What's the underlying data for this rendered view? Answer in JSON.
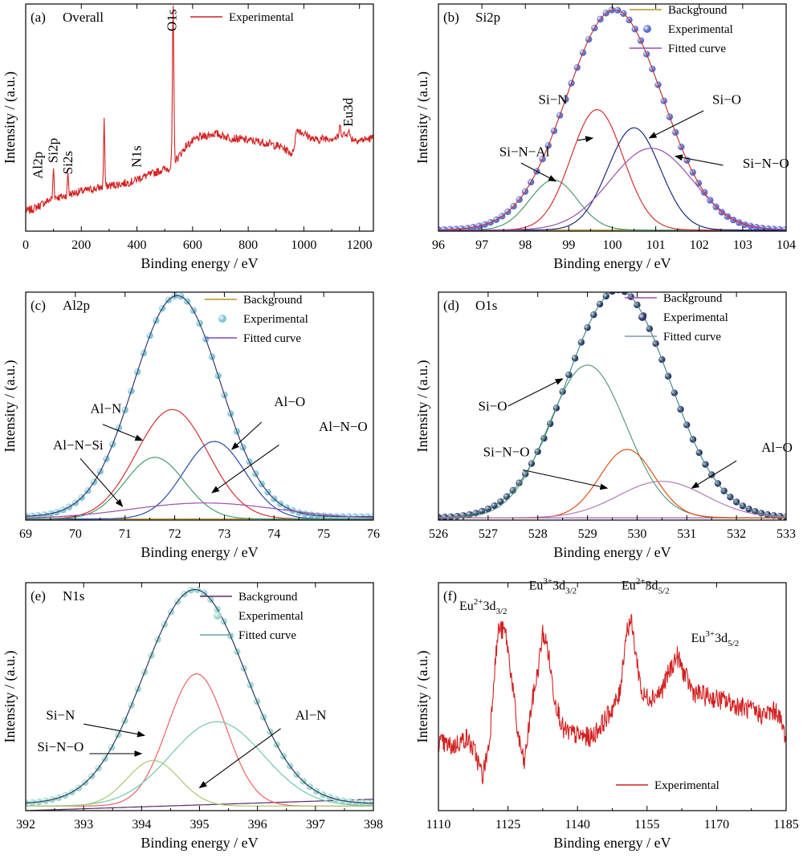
{
  "chart_data": [
    {
      "id": "a",
      "type": "line",
      "panel_label": "(a)",
      "title": "Overall",
      "xlabel": "Binding energy / eV",
      "ylabel": "Intensity / (a.u.)",
      "xlim": [
        0,
        1250
      ],
      "xticks": [
        0,
        200,
        400,
        600,
        800,
        1000,
        1200
      ],
      "legend": [
        {
          "name": "Experimental",
          "kind": "line",
          "color": "#d42020"
        }
      ],
      "series": [
        {
          "name": "Experimental",
          "color": "#d42020",
          "noise": 0.018,
          "points": [
            [
              10,
              0.09
            ],
            [
              30,
              0.1
            ],
            [
              60,
              0.12
            ],
            [
              74,
              0.13
            ],
            [
              90,
              0.14
            ],
            [
              100,
              0.15
            ],
            [
              130,
              0.15
            ],
            [
              150,
              0.16
            ],
            [
              180,
              0.17
            ],
            [
              220,
              0.18
            ],
            [
              260,
              0.19
            ],
            [
              300,
              0.2
            ],
            [
              350,
              0.21
            ],
            [
              390,
              0.22
            ],
            [
              400,
              0.23
            ],
            [
              450,
              0.25
            ],
            [
              490,
              0.27
            ],
            [
              520,
              0.28
            ],
            [
              526,
              0.3
            ],
            [
              545,
              0.32
            ],
            [
              580,
              0.38
            ],
            [
              620,
              0.41
            ],
            [
              680,
              0.43
            ],
            [
              740,
              0.41
            ],
            [
              800,
              0.4
            ],
            [
              860,
              0.39
            ],
            [
              920,
              0.37
            ],
            [
              960,
              0.34
            ],
            [
              975,
              0.45
            ],
            [
              1000,
              0.43
            ],
            [
              1040,
              0.4
            ],
            [
              1080,
              0.41
            ],
            [
              1120,
              0.41
            ],
            [
              1140,
              0.43
            ],
            [
              1165,
              0.41
            ],
            [
              1200,
              0.4
            ],
            [
              1250,
              0.41
            ]
          ],
          "peaks": [
            {
              "x": 100,
              "h": 0.13,
              "w": 2
            },
            {
              "x": 152,
              "h": 0.1,
              "w": 2
            },
            {
              "x": 282,
              "h": 0.3,
              "w": 2
            },
            {
              "x": 530,
              "h": 0.68,
              "w": 2.5
            },
            {
              "x": 1130,
              "h": 0.04,
              "w": 3
            },
            {
              "x": 1160,
              "h": 0.04,
              "w": 3
            }
          ]
        }
      ],
      "annotations": [
        {
          "text": "Al2p",
          "x": 45,
          "y": 0.23,
          "rotate": true
        },
        {
          "text": "Si2p",
          "x": 100,
          "y": 0.3,
          "rotate": true
        },
        {
          "text": "Si2s",
          "x": 153,
          "y": 0.25,
          "rotate": true
        },
        {
          "text": "N1s",
          "x": 400,
          "y": 0.28,
          "rotate": true
        },
        {
          "text": "O1s",
          "x": 527,
          "y": 0.88,
          "rotate": true
        },
        {
          "text": "Eu3d",
          "x": 1160,
          "y": 0.46,
          "rotate": true
        }
      ]
    },
    {
      "id": "b",
      "type": "line",
      "panel_label": "(b)",
      "title": "Si2p",
      "xlabel": "Binding energy / eV",
      "ylabel": "Intensity / (a.u.)",
      "xlim": [
        96,
        104
      ],
      "xticks": [
        96,
        97,
        98,
        99,
        100,
        101,
        102,
        103,
        104
      ],
      "legend": [
        {
          "name": "Background",
          "kind": "line",
          "color": "#b8901c"
        },
        {
          "name": "Experimental",
          "kind": "dot",
          "color": "#5a6fd0"
        },
        {
          "name": "Fitted curve",
          "kind": "line",
          "color": "#9c4db0"
        }
      ],
      "series": [
        {
          "name": "Background",
          "color": "#b8901c",
          "fn": "linear",
          "params": [
            0.005,
            0.005
          ]
        },
        {
          "name": "Experimental",
          "kind": "dots",
          "color": "#5a6fd0",
          "fn": "gauss",
          "params": [
            100.05,
            1.1,
            0.97
          ],
          "baseline": 0.005,
          "step": 0.133
        },
        {
          "name": "Fitted curve",
          "color": "#c03a3a",
          "fn": "gauss",
          "params": [
            100.05,
            1.1,
            0.97
          ],
          "baseline": 0.005
        },
        {
          "name": "Si-N-Al",
          "color": "#4a9a6a",
          "fn": "gauss",
          "params": [
            98.65,
            0.55,
            0.22
          ],
          "baseline": 0.005
        },
        {
          "name": "Si-N",
          "color": "#d53030",
          "fn": "gauss",
          "params": [
            99.65,
            0.6,
            0.53
          ],
          "baseline": 0.005
        },
        {
          "name": "Si-O",
          "color": "#1a2a80",
          "fn": "gauss",
          "params": [
            100.5,
            0.6,
            0.45
          ],
          "baseline": 0.005
        },
        {
          "name": "Si-N-O",
          "color": "#9c4db0",
          "fn": "gauss",
          "params": [
            100.9,
            0.95,
            0.36
          ],
          "baseline": 0.005
        }
      ],
      "annotations": [
        {
          "text": "Si−N",
          "x": 98.3,
          "y": 0.56,
          "ax": 99.2,
          "ay": 0.4,
          "tx": 99.55,
          "ty": 0.41
        },
        {
          "text": "Si−N−Al",
          "x": 97.4,
          "y": 0.33,
          "ax": 97.9,
          "ay": 0.3,
          "tx": 98.7,
          "ty": 0.22
        },
        {
          "text": "Si−O",
          "x": 102.3,
          "y": 0.56,
          "ax": 102.1,
          "ay": 0.53,
          "tx": 100.85,
          "ty": 0.41
        },
        {
          "text": "Si−N−O",
          "x": 103.0,
          "y": 0.28,
          "ax": 102.55,
          "ay": 0.29,
          "tx": 101.45,
          "ty": 0.33
        }
      ]
    },
    {
      "id": "c",
      "type": "line",
      "panel_label": "(c)",
      "title": "Al2p",
      "xlabel": "Binding energy / eV",
      "ylabel": "Intensity / (a.u.)",
      "xlim": [
        69,
        76
      ],
      "xticks": [
        69,
        70,
        71,
        72,
        73,
        74,
        75,
        76
      ],
      "legend": [
        {
          "name": "Background",
          "kind": "line",
          "color": "#b8901c"
        },
        {
          "name": "Experimental",
          "kind": "dot",
          "color": "#7fc6d8"
        },
        {
          "name": "Fitted curve",
          "kind": "line",
          "color": "#7a4cb0"
        }
      ],
      "series": [
        {
          "name": "Background",
          "color": "#b8901c",
          "fn": "linear",
          "params": [
            0.005,
            0.005
          ]
        },
        {
          "name": "Experimental",
          "kind": "dots",
          "color": "#7fc6d8",
          "fn": "gauss",
          "params": [
            72.05,
            0.87,
            0.97
          ],
          "baseline": 0.015,
          "step": 0.125
        },
        {
          "name": "Fitted curve",
          "color": "#3a3a6a",
          "fn": "gauss",
          "params": [
            72.05,
            0.87,
            0.97
          ],
          "baseline": 0.015
        },
        {
          "name": "Al-N",
          "color": "#d53030",
          "fn": "gauss",
          "params": [
            71.95,
            0.72,
            0.48
          ],
          "baseline": 0.005
        },
        {
          "name": "Al-O",
          "color": "#2a4aa8",
          "fn": "gauss",
          "params": [
            72.8,
            0.62,
            0.34
          ],
          "baseline": 0.005
        },
        {
          "name": "Al-N-Si",
          "color": "#4a9a6a",
          "fn": "gauss",
          "params": [
            71.6,
            0.6,
            0.27
          ],
          "baseline": 0.005
        },
        {
          "name": "Al-N-O",
          "color": "#9c4db0",
          "fn": "gauss",
          "params": [
            72.6,
            1.5,
            0.07
          ],
          "baseline": 0.005
        }
      ],
      "annotations": [
        {
          "text": "Al−N",
          "x": 70.3,
          "y": 0.47,
          "ax": 70.55,
          "ay": 0.42,
          "tx": 71.35,
          "ty": 0.35
        },
        {
          "text": "Al−N−Si",
          "x": 69.55,
          "y": 0.31,
          "ax": 70.1,
          "ay": 0.27,
          "tx": 70.95,
          "ty": 0.06
        },
        {
          "text": "Al−O",
          "x": 74.0,
          "y": 0.5,
          "ax": 73.75,
          "ay": 0.43,
          "tx": 73.15,
          "ty": 0.31
        },
        {
          "text": "Al−N−O",
          "x": 74.9,
          "y": 0.39,
          "ax": 74.1,
          "ay": 0.33,
          "tx": 72.75,
          "ty": 0.12
        }
      ]
    },
    {
      "id": "d",
      "type": "line",
      "panel_label": "(d)",
      "title": "O1s",
      "xlabel": "Binding energy / eV",
      "ylabel": "Intensity / (a.u.)",
      "xlim": [
        526,
        533
      ],
      "xticks": [
        526,
        527,
        528,
        529,
        530,
        531,
        532,
        533
      ],
      "legend": [
        {
          "name": "Background",
          "kind": "line",
          "color": "#9c4db0"
        },
        {
          "name": "Experimental",
          "kind": "dot",
          "color": "#2b3a6a"
        },
        {
          "name": "Fitted curve",
          "kind": "line",
          "color": "#7a9aa0"
        }
      ],
      "series": [
        {
          "name": "Background",
          "color": "#9c4db0",
          "fn": "linear",
          "params": [
            0.01,
            0.01
          ]
        },
        {
          "name": "Experimental",
          "kind": "dots",
          "color": "#2b3a6a",
          "fn": "gauss",
          "params": [
            529.62,
            1.03,
            1.0
          ],
          "baseline": 0.01,
          "step": 0.125
        },
        {
          "name": "Fitted curve",
          "color": "#4a8a8a",
          "fn": "gauss",
          "params": [
            529.62,
            1.03,
            1.0
          ],
          "baseline": 0.01
        },
        {
          "name": "Si-O",
          "color": "#5a9a7a",
          "fn": "gauss",
          "params": [
            529.0,
            0.78,
            0.67
          ],
          "baseline": 0.01
        },
        {
          "name": "Si-N-O",
          "color": "#e05010",
          "fn": "gauss",
          "params": [
            529.8,
            0.55,
            0.3
          ],
          "baseline": 0.01
        },
        {
          "name": "Al-O",
          "color": "#b07ab8",
          "fn": "gauss",
          "params": [
            530.5,
            0.88,
            0.16
          ],
          "baseline": 0.01
        }
      ],
      "annotations": [
        {
          "text": "Si−O",
          "x": 526.8,
          "y": 0.48,
          "ax": 527.4,
          "ay": 0.5,
          "tx": 528.5,
          "ty": 0.62
        },
        {
          "text": "Si−N−O",
          "x": 526.9,
          "y": 0.28,
          "ax": 527.7,
          "ay": 0.22,
          "tx": 529.4,
          "ty": 0.14
        },
        {
          "text": "Al−O",
          "x": 532.5,
          "y": 0.3,
          "ax": 532.0,
          "ay": 0.26,
          "tx": 531.1,
          "ty": 0.14
        }
      ]
    },
    {
      "id": "e",
      "type": "line",
      "panel_label": "(e)",
      "title": "N1s",
      "xlabel": "Binding energy / eV",
      "ylabel": "Intensity / (a.u.)",
      "xlim": [
        392,
        398
      ],
      "xticks": [
        392,
        393,
        394,
        395,
        396,
        397,
        398
      ],
      "legend": [
        {
          "name": "Background",
          "kind": "line",
          "color": "#5a2a6a"
        },
        {
          "name": "Experimental",
          "kind": "dot",
          "color": "#9ed6cc"
        },
        {
          "name": "Fitted curve",
          "kind": "line",
          "color": "#6aa2aa"
        }
      ],
      "series": [
        {
          "name": "Background",
          "color": "#5a2a6a",
          "fn": "linear",
          "params": [
            0.0,
            0.05
          ]
        },
        {
          "name": "Experimental",
          "kind": "dots",
          "color": "#9ed6cc",
          "fn": "gauss",
          "params": [
            394.92,
            0.88,
            0.94
          ],
          "baseline": 0.03,
          "step": 0.114
        },
        {
          "name": "Fitted curve",
          "color": "#2a3a6a",
          "fn": "gauss",
          "params": [
            394.92,
            0.88,
            0.94
          ],
          "baseline": 0.03
        },
        {
          "name": "Si-N",
          "color": "#f06060",
          "fn": "gauss",
          "params": [
            394.95,
            0.5,
            0.58
          ],
          "baseline": 0.02
        },
        {
          "name": "Al-N",
          "color": "#70c8a8",
          "fn": "gauss",
          "params": [
            395.3,
            0.8,
            0.37
          ],
          "baseline": 0.02
        },
        {
          "name": "Si-N-O",
          "color": "#a8c870",
          "fn": "gauss",
          "params": [
            394.2,
            0.45,
            0.2
          ],
          "baseline": 0.02
        }
      ],
      "annotations": [
        {
          "text": "Si−N",
          "x": 392.35,
          "y": 0.4,
          "ax": 393.0,
          "ay": 0.38,
          "tx": 394.05,
          "ty": 0.33
        },
        {
          "text": "Si−N−O",
          "x": 392.2,
          "y": 0.26,
          "ax": 393.1,
          "ay": 0.25,
          "tx": 394.0,
          "ty": 0.25
        },
        {
          "text": "Al−N",
          "x": 396.65,
          "y": 0.4,
          "ax": 396.4,
          "ay": 0.36,
          "tx": 395.0,
          "ty": 0.1
        }
      ]
    },
    {
      "id": "f",
      "type": "line",
      "panel_label": "(f)",
      "title": "",
      "xlabel": "Binding energy / eV",
      "ylabel": "Intensity / (a.u.)",
      "xlim": [
        1110,
        1185
      ],
      "xticks": [
        1110,
        1125,
        1140,
        1155,
        1170,
        1185
      ],
      "legend": [
        {
          "name": "Experimental",
          "kind": "line",
          "color": "#d42020"
        }
      ],
      "series": [
        {
          "name": "Experimental",
          "color": "#d42020",
          "noise": 0.045,
          "points": [
            [
              1110,
              0.3
            ],
            [
              1113,
              0.28
            ],
            [
              1116,
              0.32
            ],
            [
              1118,
              0.25
            ],
            [
              1119.5,
              0.15
            ],
            [
              1121,
              0.3
            ],
            [
              1122,
              0.6
            ],
            [
              1123,
              0.8
            ],
            [
              1124.5,
              0.78
            ],
            [
              1126,
              0.55
            ],
            [
              1127,
              0.35
            ],
            [
              1128.5,
              0.2
            ],
            [
              1130,
              0.45
            ],
            [
              1131.5,
              0.62
            ],
            [
              1132.5,
              0.78
            ],
            [
              1133.5,
              0.72
            ],
            [
              1135,
              0.5
            ],
            [
              1137,
              0.35
            ],
            [
              1140,
              0.33
            ],
            [
              1143,
              0.32
            ],
            [
              1146,
              0.4
            ],
            [
              1149,
              0.5
            ],
            [
              1150.5,
              0.78
            ],
            [
              1151.5,
              0.84
            ],
            [
              1152.5,
              0.7
            ],
            [
              1154,
              0.5
            ],
            [
              1156,
              0.5
            ],
            [
              1158,
              0.52
            ],
            [
              1160,
              0.62
            ],
            [
              1161.5,
              0.68
            ],
            [
              1163,
              0.6
            ],
            [
              1165,
              0.52
            ],
            [
              1168,
              0.5
            ],
            [
              1172,
              0.48
            ],
            [
              1176,
              0.45
            ],
            [
              1180,
              0.42
            ],
            [
              1183,
              0.44
            ],
            [
              1185,
              0.32
            ]
          ]
        }
      ],
      "annotations": [
        {
          "text": "Eu",
          "sup": "2+",
          "rest": "3d",
          "sub": "3/2",
          "x": 1114.5,
          "y": 0.88
        },
        {
          "text": "Eu",
          "sup": "3+",
          "rest": "3d",
          "sub": "3/2",
          "x": 1129.5,
          "y": 0.97
        },
        {
          "text": "Eu",
          "sup": "2+",
          "rest": "3d",
          "sub": "5/2",
          "x": 1149.5,
          "y": 0.97
        },
        {
          "text": "Eu",
          "sup": "3+",
          "rest": "3d",
          "sub": "5/2",
          "x": 1164.5,
          "y": 0.74
        }
      ]
    }
  ]
}
